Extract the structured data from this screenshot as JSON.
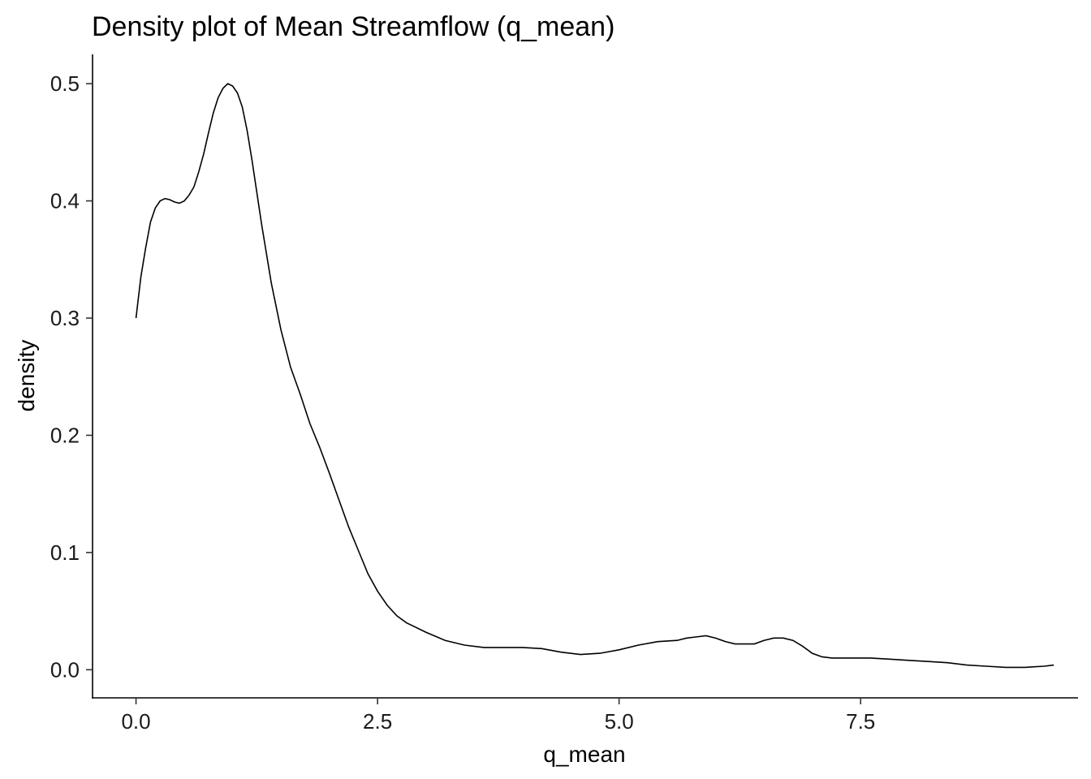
{
  "chart_data": {
    "type": "line",
    "title": "Density plot of Mean Streamflow (q_mean)",
    "xlabel": "q_mean",
    "ylabel": "density",
    "xlim": [
      -0.45,
      9.75
    ],
    "ylim": [
      -0.024,
      0.525
    ],
    "x_ticks": [
      0.0,
      2.5,
      5.0,
      7.5
    ],
    "x_tick_labels": [
      "0.0",
      "2.5",
      "5.0",
      "7.5"
    ],
    "y_ticks": [
      0.0,
      0.1,
      0.2,
      0.3,
      0.4,
      0.5
    ],
    "y_tick_labels": [
      "0.0",
      "0.1",
      "0.2",
      "0.3",
      "0.4",
      "0.5"
    ],
    "grid": false,
    "legend": "none",
    "series": [
      {
        "color": "#000000",
        "points": [
          [
            0.0,
            0.3
          ],
          [
            0.05,
            0.335
          ],
          [
            0.1,
            0.36
          ],
          [
            0.15,
            0.382
          ],
          [
            0.2,
            0.394
          ],
          [
            0.25,
            0.4
          ],
          [
            0.3,
            0.402
          ],
          [
            0.35,
            0.401
          ],
          [
            0.4,
            0.399
          ],
          [
            0.45,
            0.398
          ],
          [
            0.5,
            0.4
          ],
          [
            0.55,
            0.405
          ],
          [
            0.6,
            0.412
          ],
          [
            0.65,
            0.425
          ],
          [
            0.7,
            0.44
          ],
          [
            0.75,
            0.458
          ],
          [
            0.8,
            0.475
          ],
          [
            0.85,
            0.488
          ],
          [
            0.9,
            0.496
          ],
          [
            0.95,
            0.5
          ],
          [
            1.0,
            0.498
          ],
          [
            1.05,
            0.492
          ],
          [
            1.1,
            0.48
          ],
          [
            1.15,
            0.46
          ],
          [
            1.2,
            0.435
          ],
          [
            1.3,
            0.38
          ],
          [
            1.4,
            0.33
          ],
          [
            1.5,
            0.29
          ],
          [
            1.6,
            0.258
          ],
          [
            1.7,
            0.235
          ],
          [
            1.8,
            0.21
          ],
          [
            1.9,
            0.19
          ],
          [
            2.0,
            0.168
          ],
          [
            2.1,
            0.145
          ],
          [
            2.2,
            0.122
          ],
          [
            2.3,
            0.102
          ],
          [
            2.4,
            0.082
          ],
          [
            2.5,
            0.067
          ],
          [
            2.6,
            0.055
          ],
          [
            2.7,
            0.046
          ],
          [
            2.8,
            0.04
          ],
          [
            3.0,
            0.032
          ],
          [
            3.2,
            0.025
          ],
          [
            3.4,
            0.021
          ],
          [
            3.6,
            0.019
          ],
          [
            3.8,
            0.019
          ],
          [
            4.0,
            0.019
          ],
          [
            4.2,
            0.018
          ],
          [
            4.4,
            0.015
          ],
          [
            4.6,
            0.013
          ],
          [
            4.8,
            0.014
          ],
          [
            5.0,
            0.017
          ],
          [
            5.2,
            0.021
          ],
          [
            5.4,
            0.024
          ],
          [
            5.6,
            0.025
          ],
          [
            5.7,
            0.027
          ],
          [
            5.8,
            0.028
          ],
          [
            5.9,
            0.029
          ],
          [
            6.0,
            0.027
          ],
          [
            6.1,
            0.024
          ],
          [
            6.2,
            0.022
          ],
          [
            6.3,
            0.022
          ],
          [
            6.4,
            0.022
          ],
          [
            6.5,
            0.025
          ],
          [
            6.6,
            0.027
          ],
          [
            6.7,
            0.027
          ],
          [
            6.8,
            0.025
          ],
          [
            6.9,
            0.02
          ],
          [
            7.0,
            0.014
          ],
          [
            7.1,
            0.011
          ],
          [
            7.2,
            0.01
          ],
          [
            7.4,
            0.01
          ],
          [
            7.6,
            0.01
          ],
          [
            7.8,
            0.009
          ],
          [
            8.0,
            0.008
          ],
          [
            8.2,
            0.007
          ],
          [
            8.4,
            0.006
          ],
          [
            8.6,
            0.004
          ],
          [
            8.8,
            0.003
          ],
          [
            9.0,
            0.002
          ],
          [
            9.2,
            0.002
          ],
          [
            9.4,
            0.003
          ],
          [
            9.5,
            0.004
          ]
        ]
      }
    ]
  }
}
